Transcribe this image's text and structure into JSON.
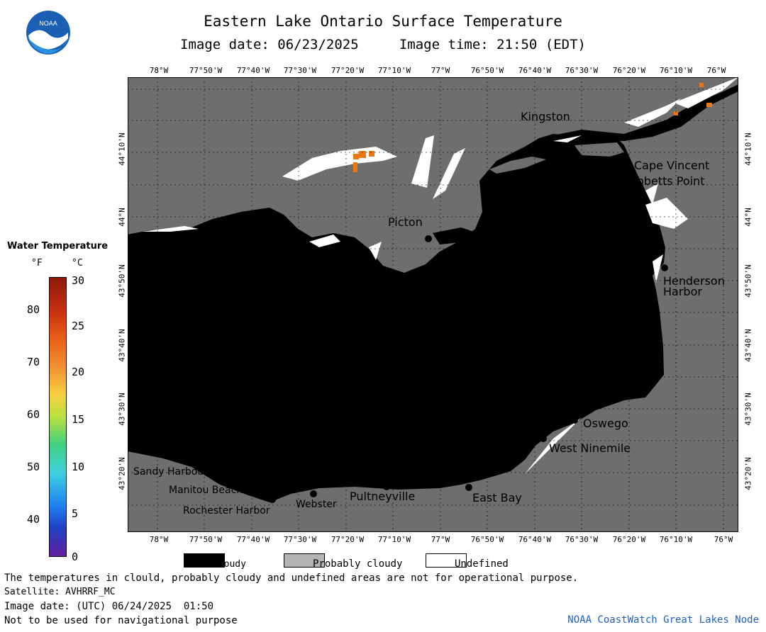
{
  "header": {
    "title": "Eastern Lake Ontario Surface Temperature",
    "subtitle": "Image date: 06/23/2025     Image time: 21:50 (EDT)"
  },
  "logo": {
    "name": "noaa-logo",
    "text": "NOAA"
  },
  "legend": {
    "title": "Water Temperature",
    "unit_f": "°F",
    "unit_c": "°C",
    "f_ticks": [
      "80",
      "70",
      "60",
      "50",
      "40"
    ],
    "c_ticks": [
      "30",
      "25",
      "20",
      "15",
      "10",
      "5",
      "0"
    ],
    "c_range": [
      0,
      30
    ]
  },
  "axes": {
    "lon_top": [
      "78°W",
      "77°50'W",
      "77°40'W",
      "77°30'W",
      "77°20'W",
      "77°10'W",
      "77°W",
      "76°50'W",
      "76°40'W",
      "76°30'W",
      "76°20'W",
      "76°10'W",
      "76°W"
    ],
    "lon_bottom": [
      "78°W",
      "77°50'W",
      "77°40'W",
      "77°30'W",
      "77°20'W",
      "77°10'W",
      "77°W",
      "76°50'W",
      "76°40'W",
      "76°30'W",
      "76°20'W",
      "76°10'W",
      "76°W"
    ],
    "lat": [
      "44°10'N",
      "44°N",
      "43°50'N",
      "43°40'N",
      "43°30'N",
      "43°20'N"
    ]
  },
  "places": {
    "kingston": "Kingston",
    "cape_vincent": "Cape Vincent",
    "tibbetts_point": "Tibbetts Point",
    "picton": "Picton",
    "henderson_harbor_1": "Henderson",
    "henderson_harbor_2": "Harbor",
    "oswego": "Oswego",
    "west_ninemile": "West Ninemile",
    "east_bay": "East Bay",
    "pultneyville": "Pultneyville",
    "webster": "Webster",
    "rochester_harbor": "Rochester Harbor",
    "manitou_beach": "Manitou Beach",
    "sandy_harbour": "Sandy Harbour"
  },
  "key": {
    "cloudy": "Cloudy",
    "probably_cloudy": "Probably cloudy",
    "undefined": "Undefined",
    "cloudy_color": "#000000",
    "probably_cloudy_color": "#b4b4b4",
    "undefined_color": "#ffffff"
  },
  "notes": {
    "disclaimer": "The temperatures in clould, probably cloudy and undefined areas are not for operational purpose.",
    "satellite": "Satellite: AVHRRF_MC",
    "utc_date": "Image date: (UTC) 06/24/2025  01:50",
    "navigation": "Not to be used for navigational purpose"
  },
  "credit": "NOAA CoastWatch Great Lakes Node",
  "colors": {
    "land": "#6e6e6e",
    "cloud": "#000000",
    "warm_pixels": "#e87810"
  }
}
